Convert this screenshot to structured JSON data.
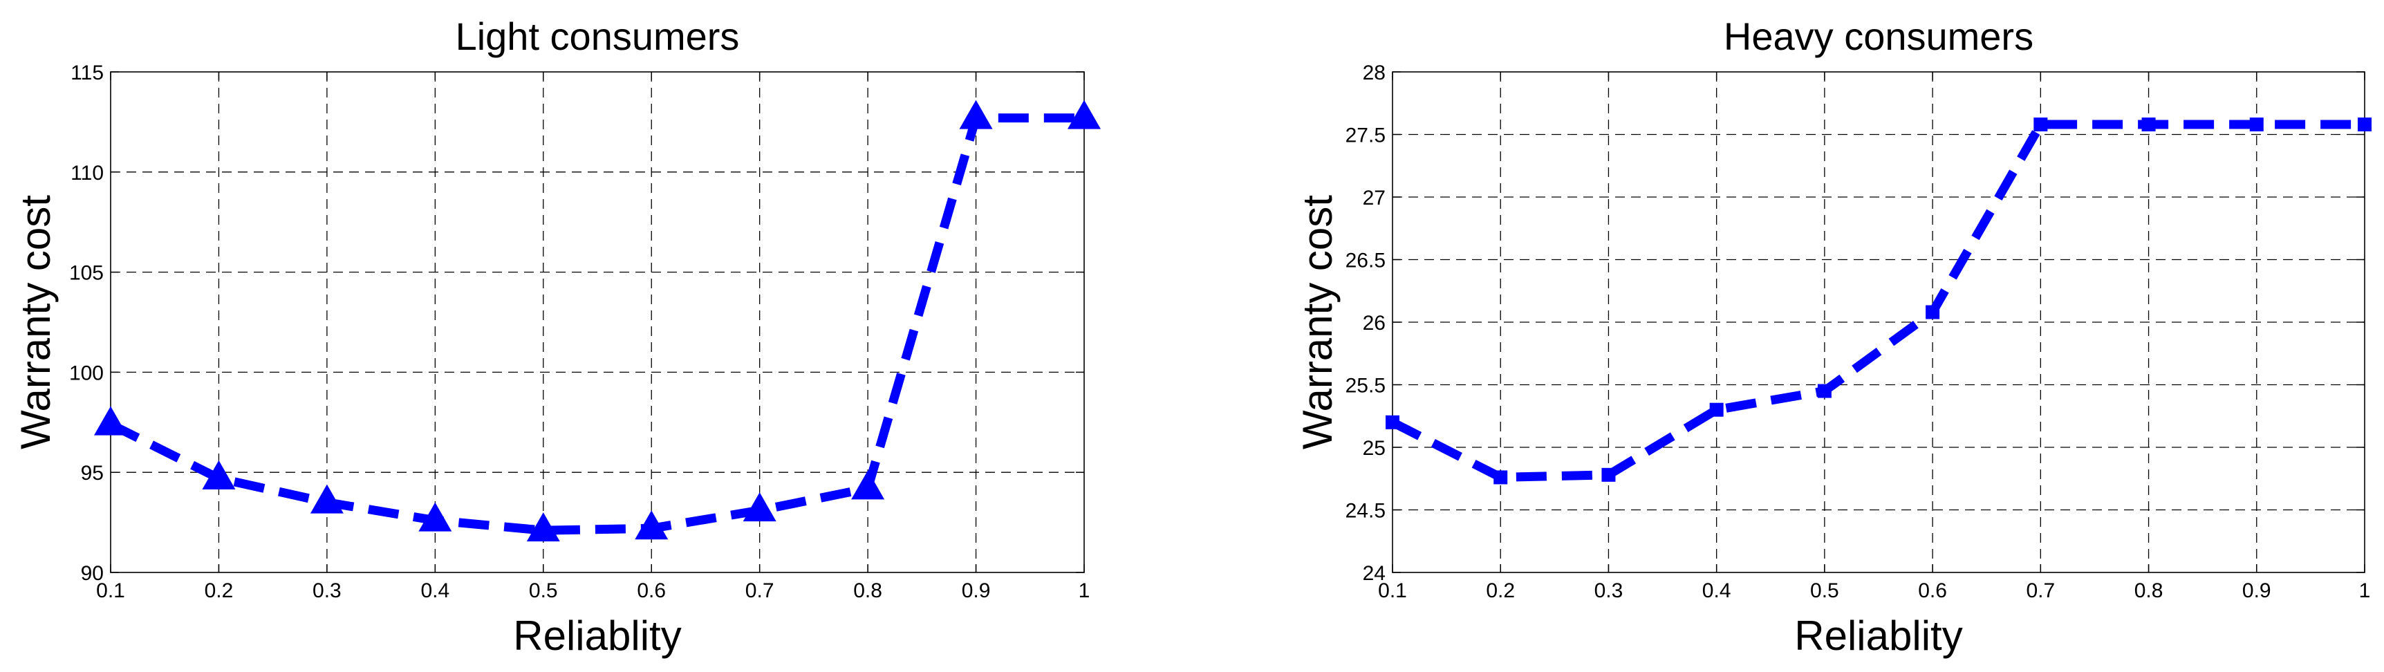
{
  "chart_data": [
    {
      "type": "line",
      "title": "Light consumers",
      "xlabel": "Reliablity",
      "ylabel": "Warranty cost",
      "xlim": [
        0.1,
        1
      ],
      "ylim": [
        90,
        115
      ],
      "x_ticks": [
        "0.1",
        "0.2",
        "0.3",
        "0.4",
        "0.5",
        "0.6",
        "0.7",
        "0.8",
        "0.9",
        "1"
      ],
      "y_ticks": [
        "90",
        "95",
        "100",
        "105",
        "110",
        "115"
      ],
      "grid": true,
      "x": [
        0.1,
        0.2,
        0.3,
        0.4,
        0.5,
        0.6,
        0.7,
        0.8,
        0.9,
        1.0
      ],
      "series": [
        {
          "values": [
            97.4,
            94.7,
            93.5,
            92.6,
            92.1,
            92.2,
            93.1,
            94.2,
            112.7,
            112.7
          ],
          "color": "#0000ff",
          "line_style": "dashed",
          "marker": "triangle"
        }
      ]
    },
    {
      "type": "line",
      "title": "Heavy consumers",
      "xlabel": "Reliablity",
      "ylabel": "Warranty cost",
      "xlim": [
        0.1,
        1
      ],
      "ylim": [
        24,
        28
      ],
      "x_ticks": [
        "0.1",
        "0.2",
        "0.3",
        "0.4",
        "0.5",
        "0.6",
        "0.7",
        "0.8",
        "0.9",
        "1"
      ],
      "y_ticks": [
        "24",
        "24.5",
        "25",
        "25.5",
        "26",
        "26.5",
        "27",
        "27.5",
        "28"
      ],
      "grid": true,
      "x": [
        0.1,
        0.2,
        0.3,
        0.4,
        0.5,
        0.6,
        0.7,
        0.8,
        0.9,
        1.0
      ],
      "series": [
        {
          "values": [
            25.2,
            24.76,
            24.78,
            25.3,
            25.45,
            26.08,
            27.58,
            27.58,
            27.58,
            27.58
          ],
          "color": "#0000ff",
          "line_style": "dashed",
          "marker": "square"
        }
      ]
    }
  ]
}
